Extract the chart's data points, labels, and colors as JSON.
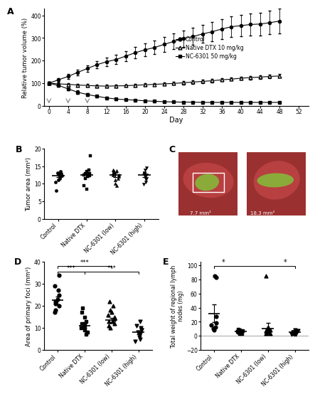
{
  "panel_A": {
    "days": [
      0,
      2,
      4,
      6,
      8,
      10,
      12,
      14,
      16,
      18,
      20,
      22,
      24,
      26,
      28,
      30,
      32,
      34,
      36,
      38,
      40,
      42,
      44,
      46,
      48
    ],
    "control_mean": [
      100,
      115,
      130,
      148,
      165,
      182,
      195,
      205,
      220,
      235,
      248,
      258,
      272,
      285,
      298,
      307,
      318,
      328,
      340,
      350,
      355,
      360,
      362,
      368,
      375
    ],
    "control_err": [
      5,
      8,
      10,
      12,
      14,
      16,
      18,
      20,
      22,
      25,
      28,
      30,
      32,
      34,
      36,
      38,
      40,
      42,
      44,
      46,
      48,
      50,
      50,
      52,
      55
    ],
    "dtx_mean": [
      100,
      97,
      95,
      92,
      90,
      88,
      87,
      88,
      89,
      91,
      93,
      95,
      97,
      99,
      102,
      105,
      108,
      111,
      115,
      118,
      122,
      125,
      127,
      130,
      132
    ],
    "dtx_err": [
      5,
      6,
      6,
      6,
      6,
      6,
      6,
      6,
      6,
      6,
      6,
      6,
      6,
      6,
      7,
      7,
      7,
      7,
      7,
      7,
      7,
      8,
      8,
      8,
      8
    ],
    "nc_mean": [
      100,
      90,
      75,
      60,
      50,
      42,
      35,
      30,
      27,
      25,
      22,
      20,
      18,
      17,
      16,
      16,
      15,
      15,
      15,
      15,
      15,
      15,
      15,
      15,
      15
    ],
    "nc_err": [
      5,
      6,
      7,
      7,
      7,
      6,
      5,
      5,
      4,
      4,
      4,
      4,
      3,
      3,
      3,
      3,
      3,
      3,
      3,
      3,
      3,
      3,
      3,
      3,
      3
    ],
    "arrow_days": [
      0,
      4,
      8
    ],
    "ylabel": "Relative tumor volume (%)",
    "xlabel": "Day",
    "ylim": [
      0,
      430
    ],
    "yticks": [
      0,
      100,
      200,
      300,
      400
    ],
    "xticks": [
      0,
      4,
      8,
      12,
      16,
      20,
      24,
      28,
      32,
      36,
      40,
      44,
      48,
      52
    ],
    "legend_labels": [
      "Control",
      "Native DTX 10 mg/kg",
      "NC-6301 50 mg/kg"
    ],
    "label": "A"
  },
  "panel_B": {
    "categories": [
      "Control",
      "Native DTX",
      "NC-6301 (low)",
      "NC-6301 (high)"
    ],
    "control_pts": [
      12.5,
      13.0,
      12.8,
      11.5,
      10.5,
      12.2,
      13.5,
      12.0,
      8.0,
      11.0,
      13.2
    ],
    "dtx_pts": [
      12.8,
      12.5,
      9.5,
      13.0,
      12.0,
      11.5,
      14.0,
      12.8,
      8.5,
      13.5,
      18.0,
      12.2
    ],
    "nc_low_pts": [
      12.5,
      13.8,
      10.0,
      12.0,
      13.2,
      11.5,
      14.0,
      12.8,
      9.5,
      13.8,
      12.5,
      11.0
    ],
    "nc_high_pts": [
      12.8,
      13.2,
      10.5,
      12.5,
      13.0,
      11.2,
      14.5,
      12.5,
      9.8,
      14.0,
      12.0,
      11.5
    ],
    "means": [
      12.3,
      12.5,
      12.5,
      12.4
    ],
    "sems": [
      0.5,
      0.7,
      0.6,
      0.5
    ],
    "ylabel": "Tumor area (mm²)",
    "ylim": [
      0,
      20
    ],
    "yticks": [
      0,
      5,
      10,
      15,
      20
    ],
    "label": "B"
  },
  "panel_C": {
    "label": "C",
    "text1": "7.7 mm²",
    "text2": "18.3 mm²"
  },
  "panel_D": {
    "categories": [
      "Control",
      "Native DTX",
      "NC-6301 (low)",
      "NC-6301 (high)"
    ],
    "control_pts": [
      34,
      29,
      27,
      25,
      23,
      22,
      21,
      20,
      18,
      17
    ],
    "dtx_pts": [
      19,
      17,
      15,
      13,
      12,
      11,
      10,
      9,
      8,
      8,
      7,
      12
    ],
    "nc_low_pts": [
      22,
      20,
      18,
      17,
      16,
      15,
      14,
      13,
      12,
      11,
      10,
      13
    ],
    "nc_high_pts": [
      13,
      11,
      10,
      9,
      9,
      8,
      7,
      7,
      6,
      5,
      4
    ],
    "means": [
      22.5,
      11.0,
      13.5,
      8.0
    ],
    "sems": [
      1.8,
      1.0,
      1.2,
      0.9
    ],
    "ylabel": "Area of primary foci (mm²)",
    "ylim": [
      0,
      40
    ],
    "yticks": [
      0,
      10,
      20,
      30,
      40
    ],
    "sig_bars": [
      {
        "x1": 0,
        "x2": 1,
        "y": 36,
        "label": "***"
      },
      {
        "x1": 0,
        "x2": 2,
        "y": 38.5,
        "label": "***"
      },
      {
        "x1": 1,
        "x2": 3,
        "y": 36,
        "label": "***"
      }
    ],
    "label": "D"
  },
  "panel_E": {
    "categories": [
      "Control",
      "Native DTX",
      "NC-6301 (low)",
      "NC-6301 (high)"
    ],
    "control_pts": [
      85,
      83,
      28,
      18,
      15,
      12,
      10,
      8
    ],
    "dtx_pts": [
      9,
      8,
      7,
      6,
      5,
      5,
      4,
      3,
      3
    ],
    "nc_low_pts": [
      85,
      12,
      10,
      8,
      7,
      6,
      5,
      4,
      3,
      3
    ],
    "nc_high_pts": [
      8,
      7,
      6,
      5,
      5,
      4,
      3,
      3,
      2,
      2,
      2
    ],
    "means": [
      32,
      6,
      10,
      5
    ],
    "sems": [
      13,
      2,
      8,
      1.5
    ],
    "ylabel": "Total weight of regional lymph\nnodes (mg)",
    "ylim": [
      -20,
      105
    ],
    "yticks": [
      -20,
      0,
      20,
      40,
      60,
      80,
      100
    ],
    "sig_line_y": 99,
    "label": "E"
  },
  "colors": {
    "black": "#000000",
    "gray": "#888888"
  }
}
